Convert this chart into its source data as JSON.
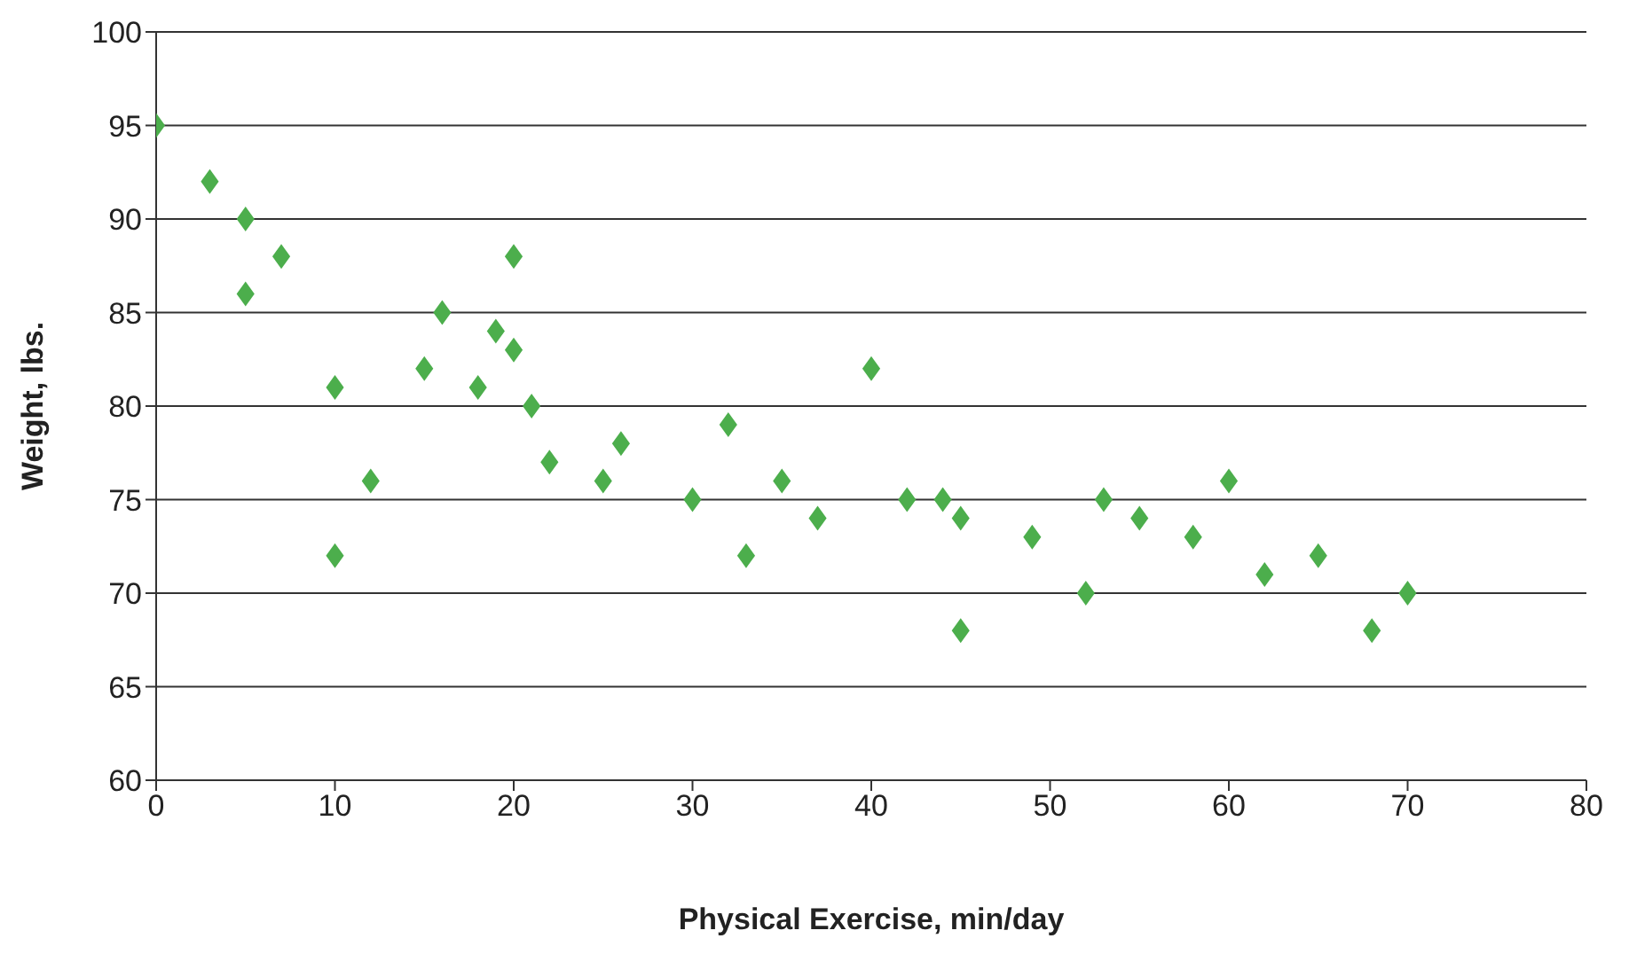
{
  "chart_data": {
    "type": "scatter",
    "xlabel": "Physical Exercise, min/day",
    "ylabel": "Weight, lbs.",
    "x": [
      0,
      3,
      5,
      5,
      7,
      10,
      10,
      12,
      15,
      16,
      18,
      19,
      20,
      20,
      21,
      22,
      25,
      26,
      30,
      32,
      33,
      35,
      37,
      40,
      42,
      44,
      45,
      45,
      49,
      52,
      53,
      55,
      58,
      60,
      62,
      65,
      68,
      70
    ],
    "values": [
      95,
      92,
      90,
      86,
      88,
      81,
      72,
      76,
      82,
      85,
      81,
      84,
      88,
      83,
      80,
      77,
      76,
      78,
      75,
      79,
      72,
      76,
      74,
      82,
      75,
      75,
      74,
      68,
      73,
      70,
      75,
      74,
      73,
      76,
      71,
      72,
      68,
      70
    ],
    "color": "#4cae4c",
    "marker": "diamond",
    "xlim": [
      0,
      80
    ],
    "xticks": [
      0,
      10,
      20,
      30,
      40,
      50,
      60,
      70,
      80
    ],
    "ylim": [
      60,
      100
    ],
    "yticks": [
      60,
      65,
      70,
      75,
      80,
      85,
      90,
      95,
      100
    ],
    "grid": "y",
    "legend": false
  }
}
